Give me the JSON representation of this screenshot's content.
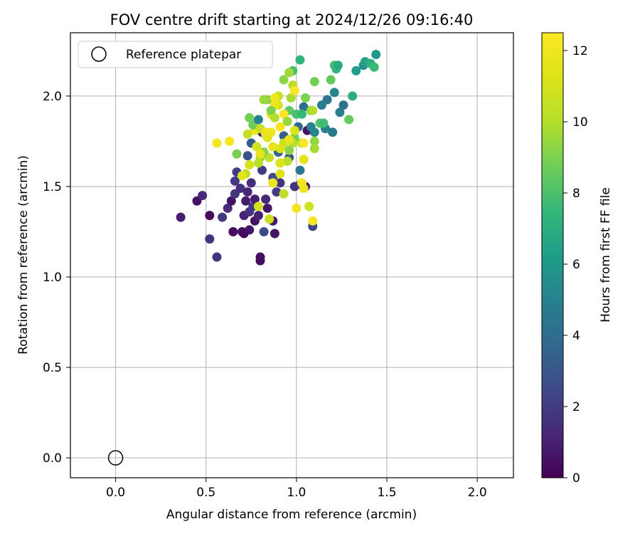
{
  "chart_data": {
    "type": "scatter",
    "title": "FOV centre drift starting at 2024/12/26 09:16:40",
    "xlabel": "Angular distance from reference (arcmin)",
    "ylabel": "Rotation from reference (arcmin)",
    "xlim": [
      -0.25,
      2.2
    ],
    "ylim": [
      -0.11,
      2.35
    ],
    "xticks": [
      0.0,
      0.5,
      1.0,
      1.5,
      2.0
    ],
    "xtick_labels": [
      "0.0",
      "0.5",
      "1.0",
      "1.5",
      "2.0"
    ],
    "yticks": [
      0.0,
      0.5,
      1.0,
      1.5,
      2.0
    ],
    "ytick_labels": [
      "0.0",
      "0.5",
      "1.0",
      "1.5",
      "2.0"
    ],
    "grid": true,
    "legend": {
      "position": "top-left",
      "entries": [
        "Reference platepar"
      ]
    },
    "reference_point": {
      "x": 0.0,
      "y": 0.0,
      "label": "Reference platepar",
      "marker": "open-circle"
    },
    "colorbar": {
      "label": "Hours from first FF file",
      "colormap": "viridis",
      "min": 0,
      "max": 12.5,
      "ticks": [
        0,
        2,
        4,
        6,
        8,
        10,
        12
      ],
      "tick_labels": [
        "0",
        "2",
        "4",
        "6",
        "8",
        "10",
        "12"
      ]
    },
    "points": [
      [
        0.36,
        1.33,
        0.9
      ],
      [
        0.45,
        1.42,
        0.5
      ],
      [
        0.48,
        1.45,
        1.3
      ],
      [
        0.52,
        1.34,
        0.3
      ],
      [
        0.52,
        1.21,
        1.6
      ],
      [
        0.56,
        1.11,
        1.7
      ],
      [
        0.59,
        1.33,
        1.9
      ],
      [
        0.62,
        1.38,
        1.4
      ],
      [
        0.64,
        1.42,
        0.6
      ],
      [
        0.65,
        1.25,
        0.4
      ],
      [
        0.66,
        1.46,
        1.8
      ],
      [
        0.66,
        1.53,
        1.9
      ],
      [
        0.67,
        1.58,
        2.1
      ],
      [
        0.69,
        1.49,
        1.5
      ],
      [
        0.7,
        1.25,
        0.2
      ],
      [
        0.71,
        1.34,
        1.0
      ],
      [
        0.71,
        1.24,
        0.3
      ],
      [
        0.72,
        1.42,
        0.8
      ],
      [
        0.73,
        1.47,
        1.2
      ],
      [
        0.74,
        1.36,
        1.7
      ],
      [
        0.74,
        1.26,
        0.6
      ],
      [
        0.75,
        1.52,
        1.4
      ],
      [
        0.76,
        1.39,
        1.9
      ],
      [
        0.77,
        1.43,
        0.9
      ],
      [
        0.77,
        1.31,
        0.5
      ],
      [
        0.79,
        1.34,
        1.1
      ],
      [
        0.8,
        1.09,
        0.2
      ],
      [
        0.8,
        1.11,
        0.4
      ],
      [
        0.81,
        1.59,
        2.0
      ],
      [
        0.82,
        1.25,
        2.6
      ],
      [
        0.83,
        1.43,
        1.3
      ],
      [
        0.84,
        1.38,
        0.7
      ],
      [
        0.87,
        1.55,
        2.5
      ],
      [
        0.87,
        1.31,
        0.8
      ],
      [
        0.88,
        1.24,
        0.6
      ],
      [
        0.89,
        1.47,
        1.9
      ],
      [
        0.91,
        1.52,
        1.7
      ],
      [
        0.99,
        1.5,
        1.6
      ],
      [
        1.02,
        1.51,
        2.1
      ],
      [
        1.05,
        1.5,
        0.9
      ],
      [
        1.09,
        1.28,
        2.4
      ],
      [
        1.06,
        1.81,
        0.5
      ],
      [
        0.81,
        1.8,
        1.2
      ],
      [
        0.73,
        1.67,
        2.8
      ],
      [
        0.75,
        1.74,
        3.2
      ],
      [
        0.9,
        1.69,
        3.5
      ],
      [
        0.93,
        1.78,
        3.3
      ],
      [
        0.96,
        1.66,
        3.0
      ],
      [
        1.01,
        1.83,
        3.8
      ],
      [
        1.02,
        1.59,
        4.4
      ],
      [
        1.04,
        1.94,
        4.1
      ],
      [
        1.08,
        1.83,
        5.0
      ],
      [
        1.1,
        1.8,
        5.2
      ],
      [
        1.14,
        1.95,
        4.7
      ],
      [
        1.16,
        1.82,
        4.9
      ],
      [
        1.17,
        1.98,
        4.3
      ],
      [
        1.2,
        1.8,
        4.6
      ],
      [
        1.21,
        2.02,
        5.3
      ],
      [
        1.24,
        1.91,
        4.8
      ],
      [
        1.26,
        1.95,
        4.2
      ],
      [
        1.29,
        1.87,
        8.6
      ],
      [
        1.31,
        2.0,
        7.0
      ],
      [
        1.33,
        2.14,
        6.2
      ],
      [
        1.37,
        2.17,
        5.7
      ],
      [
        1.38,
        2.19,
        6.5
      ],
      [
        1.41,
        2.18,
        7.1
      ],
      [
        1.43,
        2.16,
        7.6
      ],
      [
        1.44,
        2.23,
        6.0
      ],
      [
        1.22,
        2.15,
        7.4
      ],
      [
        1.21,
        2.17,
        7.8
      ],
      [
        1.23,
        2.17,
        6.8
      ],
      [
        1.19,
        2.09,
        8.5
      ],
      [
        1.1,
        2.08,
        8.8
      ],
      [
        1.02,
        2.2,
        7.3
      ],
      [
        0.98,
        2.14,
        7.9
      ],
      [
        0.96,
        2.13,
        9.6
      ],
      [
        0.93,
        2.09,
        9.3
      ],
      [
        0.98,
        2.06,
        10.2
      ],
      [
        1.05,
        1.99,
        9.0
      ],
      [
        0.97,
        1.99,
        9.8
      ],
      [
        0.9,
        2.0,
        10.6
      ],
      [
        0.84,
        1.98,
        9.2
      ],
      [
        0.82,
        1.98,
        9.5
      ],
      [
        0.9,
        1.95,
        10.9
      ],
      [
        0.96,
        1.92,
        8.4
      ],
      [
        1.0,
        1.9,
        8.0
      ],
      [
        1.03,
        1.9,
        7.5
      ],
      [
        1.08,
        1.92,
        9.1
      ],
      [
        1.09,
        1.92,
        10.0
      ],
      [
        1.13,
        1.85,
        8.2
      ],
      [
        1.15,
        1.85,
        7.7
      ],
      [
        1.1,
        1.75,
        9.4
      ],
      [
        1.1,
        1.71,
        9.7
      ],
      [
        1.03,
        1.74,
        9.9
      ],
      [
        0.99,
        1.77,
        8.9
      ],
      [
        0.98,
        1.74,
        10.3
      ],
      [
        0.96,
        1.7,
        9.3
      ],
      [
        0.95,
        1.64,
        10.1
      ],
      [
        0.93,
        1.74,
        10.8
      ],
      [
        0.91,
        1.71,
        11.3
      ],
      [
        0.87,
        1.72,
        11.7
      ],
      [
        0.85,
        1.66,
        10.4
      ],
      [
        0.83,
        1.79,
        10.7
      ],
      [
        0.82,
        1.69,
        9.2
      ],
      [
        0.8,
        1.66,
        9.6
      ],
      [
        0.78,
        1.72,
        10.9
      ],
      [
        0.77,
        1.81,
        12.0
      ],
      [
        0.76,
        1.84,
        8.7
      ],
      [
        0.74,
        1.88,
        8.8
      ],
      [
        0.73,
        1.79,
        10.5
      ],
      [
        0.72,
        1.57,
        10.2
      ],
      [
        0.74,
        1.62,
        11.1
      ],
      [
        0.7,
        1.56,
        11.6
      ],
      [
        0.67,
        1.68,
        8.9
      ],
      [
        0.63,
        1.75,
        12.2
      ],
      [
        0.56,
        1.74,
        12.1
      ],
      [
        0.79,
        1.39,
        11.0
      ],
      [
        0.85,
        1.32,
        10.6
      ],
      [
        0.87,
        1.52,
        11.8
      ],
      [
        0.91,
        1.57,
        11.4
      ],
      [
        0.93,
        1.46,
        10.3
      ],
      [
        1.0,
        1.38,
        12.0
      ],
      [
        1.07,
        1.39,
        10.8
      ],
      [
        1.09,
        1.31,
        12.3
      ],
      [
        1.04,
        1.49,
        11.9
      ],
      [
        1.03,
        1.52,
        12.1
      ],
      [
        1.04,
        1.65,
        11.5
      ],
      [
        1.04,
        1.74,
        12.4
      ],
      [
        0.99,
        1.81,
        11.3
      ],
      [
        0.96,
        1.76,
        11.8
      ],
      [
        0.91,
        1.83,
        12.2
      ],
      [
        0.88,
        1.95,
        11.9
      ],
      [
        0.88,
        1.99,
        12.0
      ],
      [
        0.86,
        1.9,
        11.6
      ],
      [
        0.86,
        1.8,
        12.1
      ],
      [
        0.84,
        1.77,
        11.5
      ],
      [
        0.8,
        1.68,
        11.7
      ],
      [
        0.79,
        1.63,
        10.1
      ],
      [
        0.91,
        1.63,
        11.2
      ],
      [
        0.93,
        1.9,
        12.3
      ],
      [
        0.99,
        2.03,
        12.4
      ],
      [
        0.86,
        1.92,
        9.0
      ],
      [
        0.95,
        1.86,
        9.5
      ],
      [
        0.88,
        1.88,
        10.0
      ],
      [
        0.79,
        1.87,
        4.9
      ],
      [
        0.8,
        1.82,
        10.5
      ],
      [
        0.83,
        1.8,
        11.9
      ]
    ]
  }
}
